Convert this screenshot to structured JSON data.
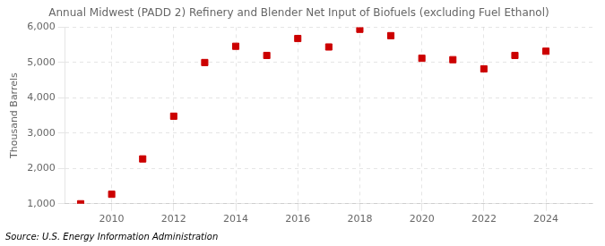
{
  "chart_data": {
    "type": "scatter",
    "title": "Annual Midwest (PADD 2) Refinery and Blender Net Input of Biofuels (excluding Fuel Ethanol)",
    "ylabel": "Thousand Barrels",
    "annotations": [
      "Source: U.S. Energy Information Administration"
    ],
    "x": [
      2009,
      2010,
      2011,
      2012,
      2013,
      2014,
      2015,
      2016,
      2017,
      2018,
      2019,
      2020,
      2021,
      2022,
      2023,
      2024
    ],
    "values": [
      1000,
      1270,
      2270,
      3480,
      5000,
      5460,
      5200,
      5680,
      5440,
      5940,
      5760,
      5120,
      5080,
      4820,
      5200,
      5320
    ],
    "color": "#cc0000",
    "marker": "square",
    "xlim": [
      2008.5,
      2025.5
    ],
    "xticks": [
      2010,
      2012,
      2014,
      2016,
      2018,
      2020,
      2022,
      2024
    ],
    "ylim": [
      1000,
      6000
    ],
    "yticks": [
      {
        "value": 1000,
        "label": "1,000"
      },
      {
        "value": 2000,
        "label": "2,000"
      },
      {
        "value": 3000,
        "label": "3,000"
      },
      {
        "value": 4000,
        "label": "4,000"
      },
      {
        "value": 5000,
        "label": "5,000"
      },
      {
        "value": 6000,
        "label": "6,000"
      }
    ],
    "grid": true
  }
}
